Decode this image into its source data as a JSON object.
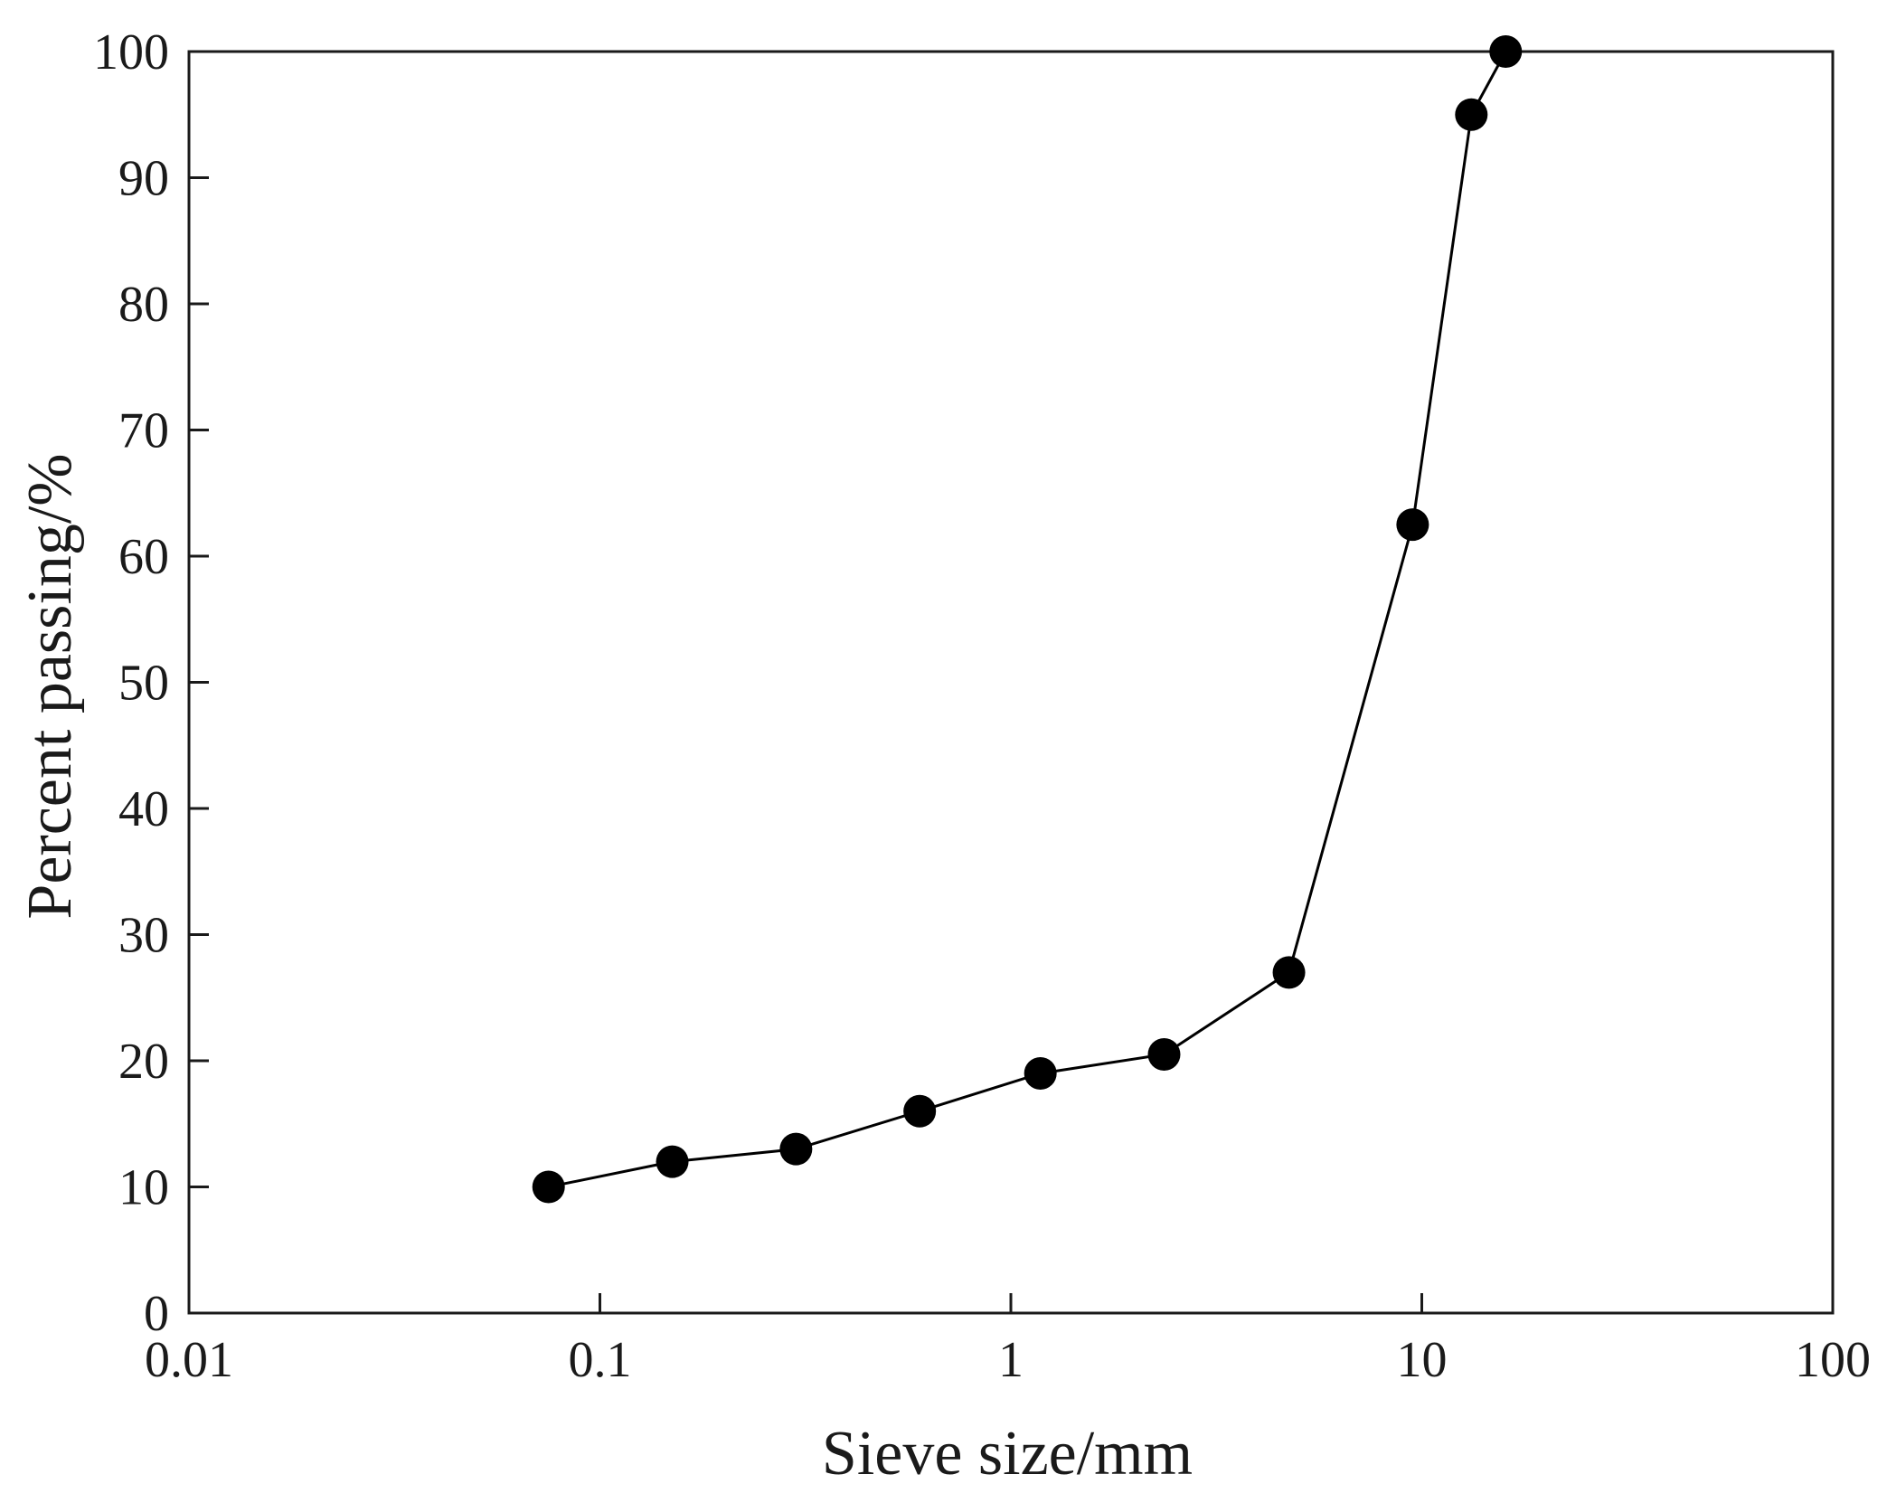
{
  "chart_data": {
    "type": "line",
    "xlabel": "Sieve size/mm",
    "ylabel": "Percent passing/%",
    "x_scale": "log",
    "xlim": [
      0.01,
      100
    ],
    "ylim": [
      0,
      100
    ],
    "x_ticks": [
      {
        "value": 0.01,
        "label": "0.01"
      },
      {
        "value": 0.1,
        "label": "0.1"
      },
      {
        "value": 1,
        "label": "1"
      },
      {
        "value": 10,
        "label": "10"
      },
      {
        "value": 100,
        "label": "100"
      }
    ],
    "y_ticks": [
      {
        "value": 0,
        "label": "0"
      },
      {
        "value": 10,
        "label": "10"
      },
      {
        "value": 20,
        "label": "20"
      },
      {
        "value": 30,
        "label": "30"
      },
      {
        "value": 40,
        "label": "40"
      },
      {
        "value": 50,
        "label": "50"
      },
      {
        "value": 60,
        "label": "60"
      },
      {
        "value": 70,
        "label": "70"
      },
      {
        "value": 80,
        "label": "80"
      },
      {
        "value": 90,
        "label": "90"
      },
      {
        "value": 100,
        "label": "100"
      }
    ],
    "grid": false,
    "legend": "none",
    "series": [
      {
        "color": "#000000",
        "marker": "filled-circle",
        "x": [
          0.075,
          0.15,
          0.3,
          0.6,
          1.18,
          2.36,
          4.75,
          9.5,
          13.2,
          16
        ],
        "y": [
          10,
          12,
          13,
          16,
          19,
          20.5,
          27,
          62.5,
          95,
          100
        ]
      }
    ]
  }
}
